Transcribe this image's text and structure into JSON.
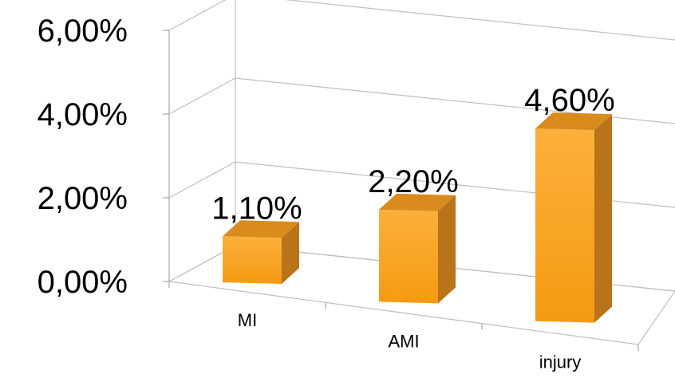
{
  "chart_data": {
    "type": "bar",
    "categories": [
      "MI",
      "AMI",
      "injury"
    ],
    "values": [
      1.1,
      2.2,
      4.6
    ],
    "data_labels": [
      "1,10%",
      "2,20%",
      "4,60%"
    ],
    "yticks": [
      "0,00%",
      "2,00%",
      "4,00%",
      "6,00%"
    ],
    "ytick_values": [
      0,
      2,
      4,
      6
    ],
    "ylim": [
      0,
      6
    ],
    "title": "",
    "xlabel": "",
    "ylabel": "",
    "grid": true,
    "legend": "none",
    "three_d": true,
    "colors": {
      "bar_front": "#f7a21f",
      "bar_front_light": "#fbb03b",
      "bar_top": "#d98b1c",
      "bar_side": "#b9731a",
      "grid": "#bfbfbf"
    }
  }
}
